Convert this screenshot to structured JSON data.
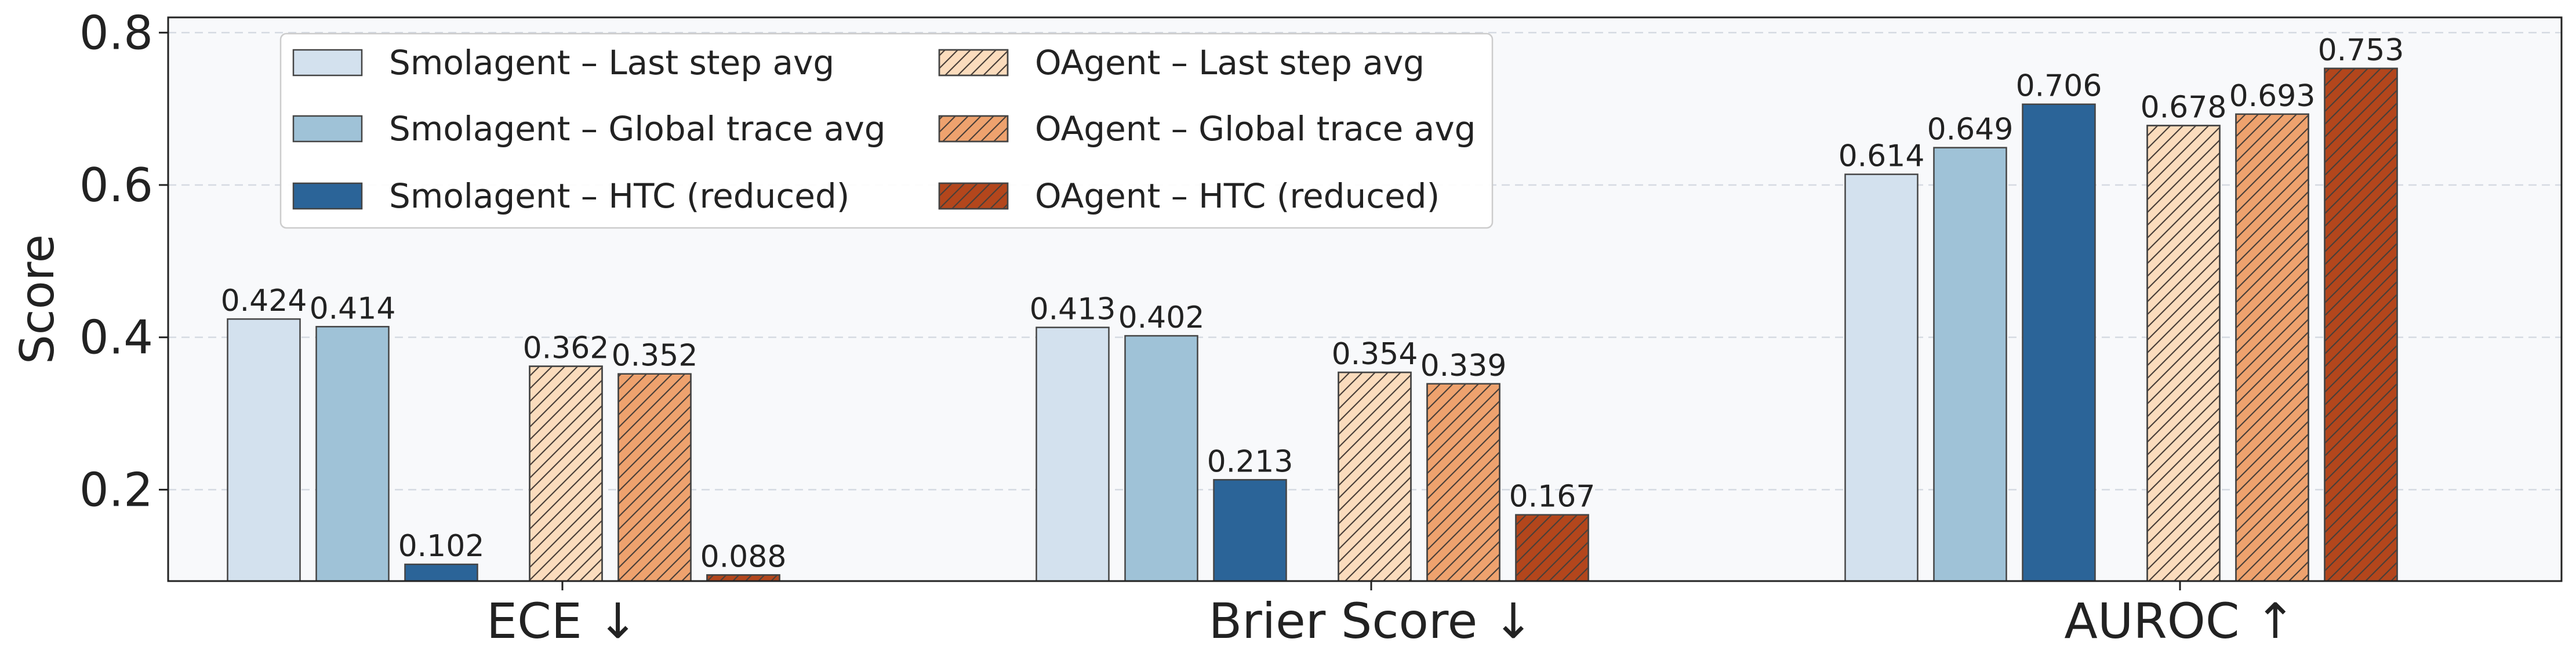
{
  "chart_data": {
    "type": "bar",
    "categories": [
      "ECE ↓",
      "Brier Score ↓",
      "AUROC ↑"
    ],
    "ylabel": "Score",
    "xlabel": "",
    "ylim": [
      0.08,
      0.82
    ],
    "yticks": [
      0.2,
      0.4,
      0.6,
      0.8
    ],
    "yticklabels": [
      "0.2",
      "0.4",
      "0.6",
      "0.8"
    ],
    "grid": "horizontal dashed",
    "legend_position": "top-left",
    "legend_columns": 2,
    "series": [
      {
        "name": "Smolagent – Last step avg",
        "values": [
          0.424,
          0.413,
          0.614
        ],
        "labels": [
          "0.424",
          "0.413",
          "0.614"
        ],
        "color": "#d3e1ee",
        "hatch": false
      },
      {
        "name": "Smolagent – Global trace avg",
        "values": [
          0.414,
          0.402,
          0.649
        ],
        "labels": [
          "0.414",
          "0.402",
          "0.649"
        ],
        "color": "#9fc2d7",
        "hatch": false
      },
      {
        "name": "Smolagent – HTC (reduced)",
        "values": [
          0.102,
          0.213,
          0.706
        ],
        "labels": [
          "0.102",
          "0.213",
          "0.706"
        ],
        "color": "#2b6498",
        "hatch": false
      },
      {
        "name": "OAgent – Last step avg",
        "values": [
          0.362,
          0.354,
          0.678
        ],
        "labels": [
          "0.362",
          "0.354",
          "0.678"
        ],
        "color": "#fbdcbd",
        "hatch": true
      },
      {
        "name": "OAgent – Global trace avg",
        "values": [
          0.352,
          0.339,
          0.693
        ],
        "labels": [
          "0.352",
          "0.339",
          "0.693"
        ],
        "color": "#eea26e",
        "hatch": true
      },
      {
        "name": "OAgent – HTC (reduced)",
        "values": [
          0.088,
          0.167,
          0.753
        ],
        "labels": [
          "0.088",
          "0.167",
          "0.753"
        ],
        "color": "#b3461c",
        "hatch": true
      }
    ],
    "colors": {
      "background": "#f8f9fb",
      "axis": "#222222",
      "grid": "#d5dae2",
      "bar_edge": "#444444",
      "hatch_line": "#4a3f38"
    }
  }
}
